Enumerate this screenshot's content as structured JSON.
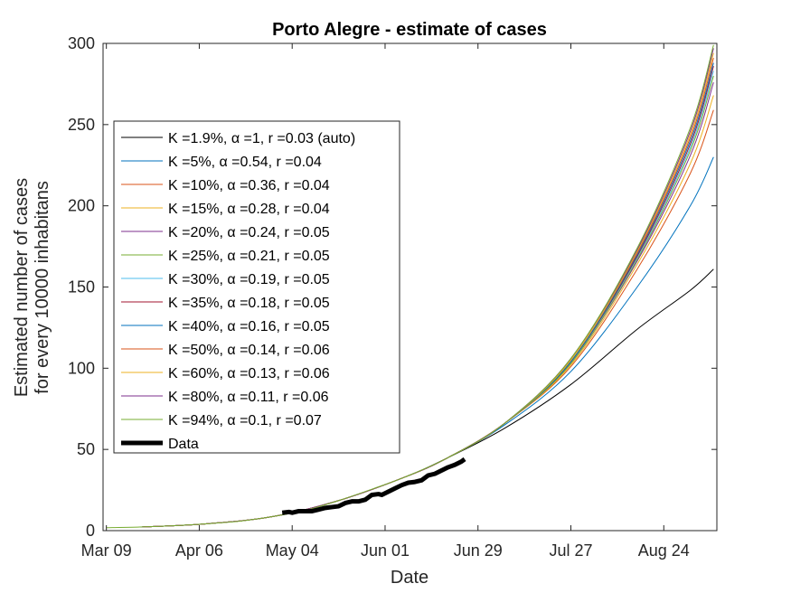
{
  "chart_data": {
    "type": "line",
    "title": "Porto Alegre - estimate of cases",
    "xlabel": "Date",
    "ylabel": [
      "Estimated number of cases",
      "for every 10000 inhabitans"
    ],
    "x_unit": "days since Mar 09",
    "xlim": [
      -1,
      184
    ],
    "ylim": [
      0,
      300
    ],
    "xticks": [
      {
        "label": "Mar 09",
        "day": 0
      },
      {
        "label": "Apr 06",
        "day": 28
      },
      {
        "label": "May 04",
        "day": 56
      },
      {
        "label": "Jun 01",
        "day": 84
      },
      {
        "label": "Jun 29",
        "day": 112
      },
      {
        "label": "Jul 27",
        "day": 140
      },
      {
        "label": "Aug 24",
        "day": 168
      }
    ],
    "yticks": [
      0,
      50,
      100,
      150,
      200,
      250,
      300
    ],
    "legend_position": "center-left",
    "series": [
      {
        "name": "K =1.9%, α =1, r =0.03 (auto)",
        "color": "#000000",
        "end_value": 161,
        "points": [
          [
            10,
            2.2
          ],
          [
            30,
            4.2
          ],
          [
            50,
            8.6
          ],
          [
            70,
            18.5
          ],
          [
            90,
            33
          ],
          [
            103,
            45
          ],
          [
            120,
            63
          ],
          [
            140,
            90
          ],
          [
            160,
            124
          ],
          [
            176,
            148
          ],
          [
            183,
            161
          ]
        ]
      },
      {
        "name": "K =5%, α =0.54, r =0.04",
        "color": "#0072BD",
        "end_value": 230,
        "points": [
          [
            10,
            2.2
          ],
          [
            30,
            4.2
          ],
          [
            50,
            8.6
          ],
          [
            70,
            18.5
          ],
          [
            90,
            33
          ],
          [
            103,
            45
          ],
          [
            120,
            65
          ],
          [
            140,
            98
          ],
          [
            160,
            150
          ],
          [
            176,
            200
          ],
          [
            183,
            230
          ]
        ]
      },
      {
        "name": "K =10%, α =0.36, r =0.04",
        "color": "#D95319",
        "end_value": 259,
        "points": [
          [
            10,
            2.2
          ],
          [
            30,
            4.2
          ],
          [
            50,
            8.6
          ],
          [
            70,
            18.5
          ],
          [
            90,
            33
          ],
          [
            103,
            45
          ],
          [
            120,
            66
          ],
          [
            140,
            101
          ],
          [
            160,
            161
          ],
          [
            176,
            220
          ],
          [
            183,
            259
          ]
        ]
      },
      {
        "name": "K =15%, α =0.28, r =0.04",
        "color": "#EDB120",
        "end_value": 268,
        "points": [
          [
            10,
            2.2
          ],
          [
            30,
            4.2
          ],
          [
            50,
            8.6
          ],
          [
            70,
            18.5
          ],
          [
            90,
            33
          ],
          [
            103,
            45
          ],
          [
            120,
            66
          ],
          [
            140,
            102
          ],
          [
            160,
            164
          ],
          [
            176,
            226
          ],
          [
            183,
            268
          ]
        ]
      },
      {
        "name": "K =20%, α =0.24, r =0.05",
        "color": "#7E2F8E",
        "end_value": 276,
        "points": [
          [
            10,
            2.2
          ],
          [
            30,
            4.2
          ],
          [
            50,
            8.6
          ],
          [
            70,
            18.5
          ],
          [
            90,
            33
          ],
          [
            103,
            45
          ],
          [
            120,
            66
          ],
          [
            140,
            103
          ],
          [
            160,
            166
          ],
          [
            176,
            231
          ],
          [
            183,
            276
          ]
        ]
      },
      {
        "name": "K =25%, α =0.21, r =0.05",
        "color": "#77AC30",
        "end_value": 280,
        "points": [
          [
            10,
            2.2
          ],
          [
            30,
            4.2
          ],
          [
            50,
            8.6
          ],
          [
            70,
            18.5
          ],
          [
            90,
            33
          ],
          [
            103,
            45
          ],
          [
            120,
            66
          ],
          [
            140,
            103
          ],
          [
            160,
            167
          ],
          [
            176,
            234
          ],
          [
            183,
            280
          ]
        ]
      },
      {
        "name": "K =30%, α =0.19, r =0.05",
        "color": "#4DBEEE",
        "end_value": 283,
        "points": [
          [
            10,
            2.2
          ],
          [
            30,
            4.2
          ],
          [
            50,
            8.6
          ],
          [
            70,
            18.5
          ],
          [
            90,
            33
          ],
          [
            103,
            45
          ],
          [
            120,
            66
          ],
          [
            140,
            104
          ],
          [
            160,
            168
          ],
          [
            176,
            236
          ],
          [
            183,
            283
          ]
        ]
      },
      {
        "name": "K =35%, α =0.18, r =0.05",
        "color": "#A2142F",
        "end_value": 286,
        "points": [
          [
            10,
            2.2
          ],
          [
            30,
            4.2
          ],
          [
            50,
            8.6
          ],
          [
            70,
            18.5
          ],
          [
            90,
            33
          ],
          [
            103,
            45
          ],
          [
            120,
            66
          ],
          [
            140,
            104
          ],
          [
            160,
            169
          ],
          [
            176,
            238
          ],
          [
            183,
            286
          ]
        ]
      },
      {
        "name": "K =40%, α =0.16, r =0.05",
        "color": "#0072BD",
        "end_value": 288,
        "points": [
          [
            10,
            2.2
          ],
          [
            30,
            4.2
          ],
          [
            50,
            8.6
          ],
          [
            70,
            18.5
          ],
          [
            90,
            33
          ],
          [
            103,
            45
          ],
          [
            120,
            66
          ],
          [
            140,
            104
          ],
          [
            160,
            170
          ],
          [
            176,
            240
          ],
          [
            183,
            288
          ]
        ]
      },
      {
        "name": "K =50%, α =0.14, r =0.06",
        "color": "#D95319",
        "end_value": 291,
        "points": [
          [
            10,
            2.2
          ],
          [
            30,
            4.2
          ],
          [
            50,
            8.6
          ],
          [
            70,
            18.5
          ],
          [
            90,
            33
          ],
          [
            103,
            45
          ],
          [
            120,
            66
          ],
          [
            140,
            105
          ],
          [
            160,
            171
          ],
          [
            176,
            242
          ],
          [
            183,
            291
          ]
        ]
      },
      {
        "name": "K =60%, α =0.13, r =0.06",
        "color": "#EDB120",
        "end_value": 294,
        "points": [
          [
            10,
            2.2
          ],
          [
            30,
            4.2
          ],
          [
            50,
            8.6
          ],
          [
            70,
            18.5
          ],
          [
            90,
            33
          ],
          [
            103,
            45
          ],
          [
            120,
            66
          ],
          [
            140,
            105
          ],
          [
            160,
            172
          ],
          [
            176,
            244
          ],
          [
            183,
            294
          ]
        ]
      },
      {
        "name": "K =80%, α =0.11, r =0.06",
        "color": "#7E2F8E",
        "end_value": 297,
        "points": [
          [
            10,
            2.2
          ],
          [
            30,
            4.2
          ],
          [
            50,
            8.6
          ],
          [
            70,
            18.5
          ],
          [
            90,
            33
          ],
          [
            103,
            45
          ],
          [
            120,
            66
          ],
          [
            140,
            106
          ],
          [
            160,
            173
          ],
          [
            176,
            246
          ],
          [
            183,
            297
          ]
        ]
      },
      {
        "name": "K =94%, α =0.1, r =0.07",
        "color": "#77AC30",
        "end_value": 299,
        "points": [
          [
            0,
            1.8
          ],
          [
            10,
            2.2
          ],
          [
            20,
            3.0
          ],
          [
            30,
            4.2
          ],
          [
            40,
            5.8
          ],
          [
            50,
            8.6
          ],
          [
            60,
            12.5
          ],
          [
            70,
            18.5
          ],
          [
            80,
            25.5
          ],
          [
            90,
            33
          ],
          [
            103,
            45
          ],
          [
            120,
            66
          ],
          [
            140,
            106
          ],
          [
            160,
            174
          ],
          [
            176,
            248
          ],
          [
            183,
            299
          ]
        ]
      }
    ],
    "data_series": {
      "name": "Data",
      "color": "#000000",
      "points": [
        [
          53,
          11
        ],
        [
          55,
          11.5
        ],
        [
          56,
          11
        ],
        [
          58,
          12
        ],
        [
          60,
          12
        ],
        [
          62,
          12
        ],
        [
          64,
          13
        ],
        [
          66,
          14
        ],
        [
          68,
          14.5
        ],
        [
          70,
          15
        ],
        [
          72,
          17
        ],
        [
          74,
          18
        ],
        [
          76,
          18
        ],
        [
          78,
          19
        ],
        [
          80,
          22
        ],
        [
          82,
          22.5
        ],
        [
          83,
          22
        ],
        [
          85,
          24
        ],
        [
          87,
          26
        ],
        [
          89,
          28
        ],
        [
          91,
          29.5
        ],
        [
          93,
          30
        ],
        [
          95,
          31
        ],
        [
          97,
          34
        ],
        [
          99,
          35
        ],
        [
          101,
          37
        ],
        [
          103,
          39
        ],
        [
          105,
          40.5
        ],
        [
          107,
          42.5
        ],
        [
          108,
          44
        ]
      ]
    }
  }
}
